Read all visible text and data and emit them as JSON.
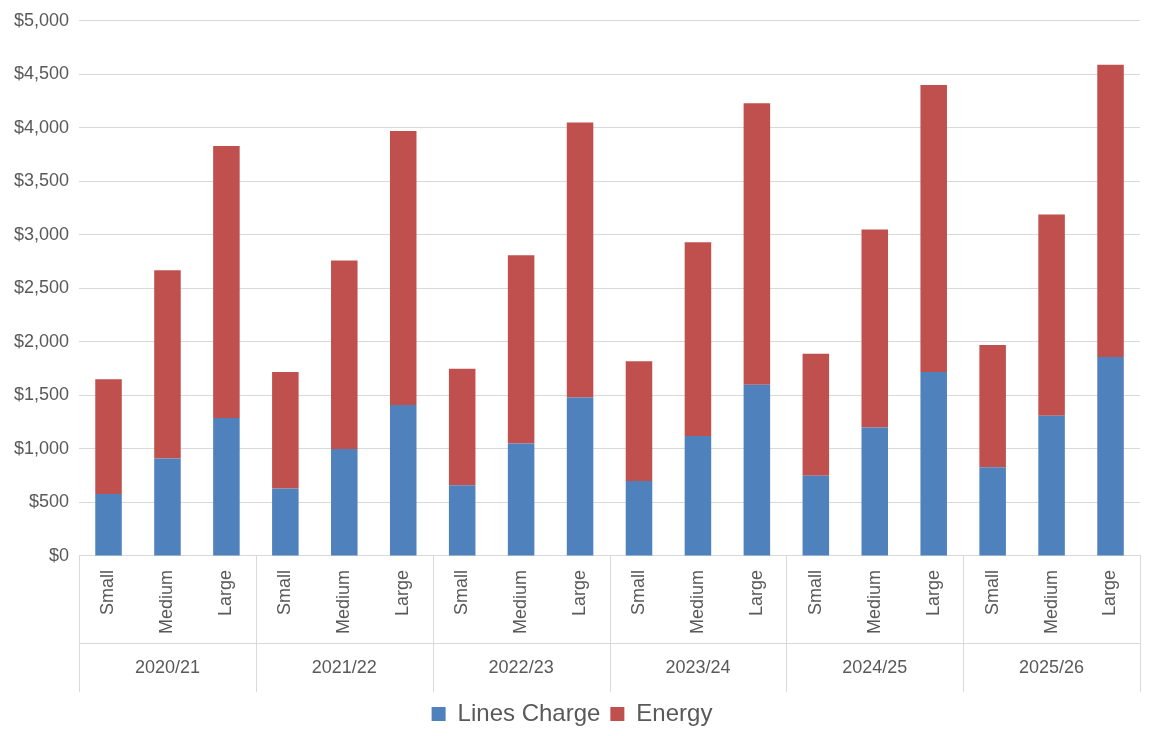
{
  "chart_data": {
    "type": "bar",
    "stacked": true,
    "categories": [
      "Small",
      "Medium",
      "Large",
      "Small",
      "Medium",
      "Large",
      "Small",
      "Medium",
      "Large",
      "Small",
      "Medium",
      "Large",
      "Small",
      "Medium",
      "Large",
      "Small",
      "Medium",
      "Large"
    ],
    "series": [
      {
        "name": "Lines Charge",
        "color": "#4f81bd",
        "values": [
          580,
          910,
          1290,
          630,
          1000,
          1410,
          660,
          1050,
          1480,
          700,
          1120,
          1600,
          750,
          1200,
          1720,
          830,
          1310,
          1860
        ]
      },
      {
        "name": "Energy",
        "color": "#c0504d",
        "values": [
          1070,
          1760,
          2540,
          1090,
          1760,
          2560,
          1090,
          1760,
          2570,
          1120,
          1810,
          2630,
          1140,
          1850,
          2680,
          1140,
          1880,
          2730
        ]
      }
    ],
    "ylim": [
      0,
      5000
    ],
    "yticks": [
      {
        "value": 0,
        "label": "$0"
      },
      {
        "value": 500,
        "label": "$500"
      },
      {
        "value": 1000,
        "label": "$1,000"
      },
      {
        "value": 1500,
        "label": "$1,500"
      },
      {
        "value": 2000,
        "label": "$2,000"
      },
      {
        "value": 2500,
        "label": "$2,500"
      },
      {
        "value": 3000,
        "label": "$3,000"
      },
      {
        "value": 3500,
        "label": "$3,500"
      },
      {
        "value": 4000,
        "label": "$4,000"
      },
      {
        "value": 4500,
        "label": "$4,500"
      },
      {
        "value": 5000,
        "label": "$5,000"
      }
    ],
    "grid": "y",
    "legend": "bottom",
    "annotations": [
      "2020/21",
      "2021/22",
      "2022/23",
      "2023/24",
      "2024/25",
      "2025/26"
    ]
  }
}
